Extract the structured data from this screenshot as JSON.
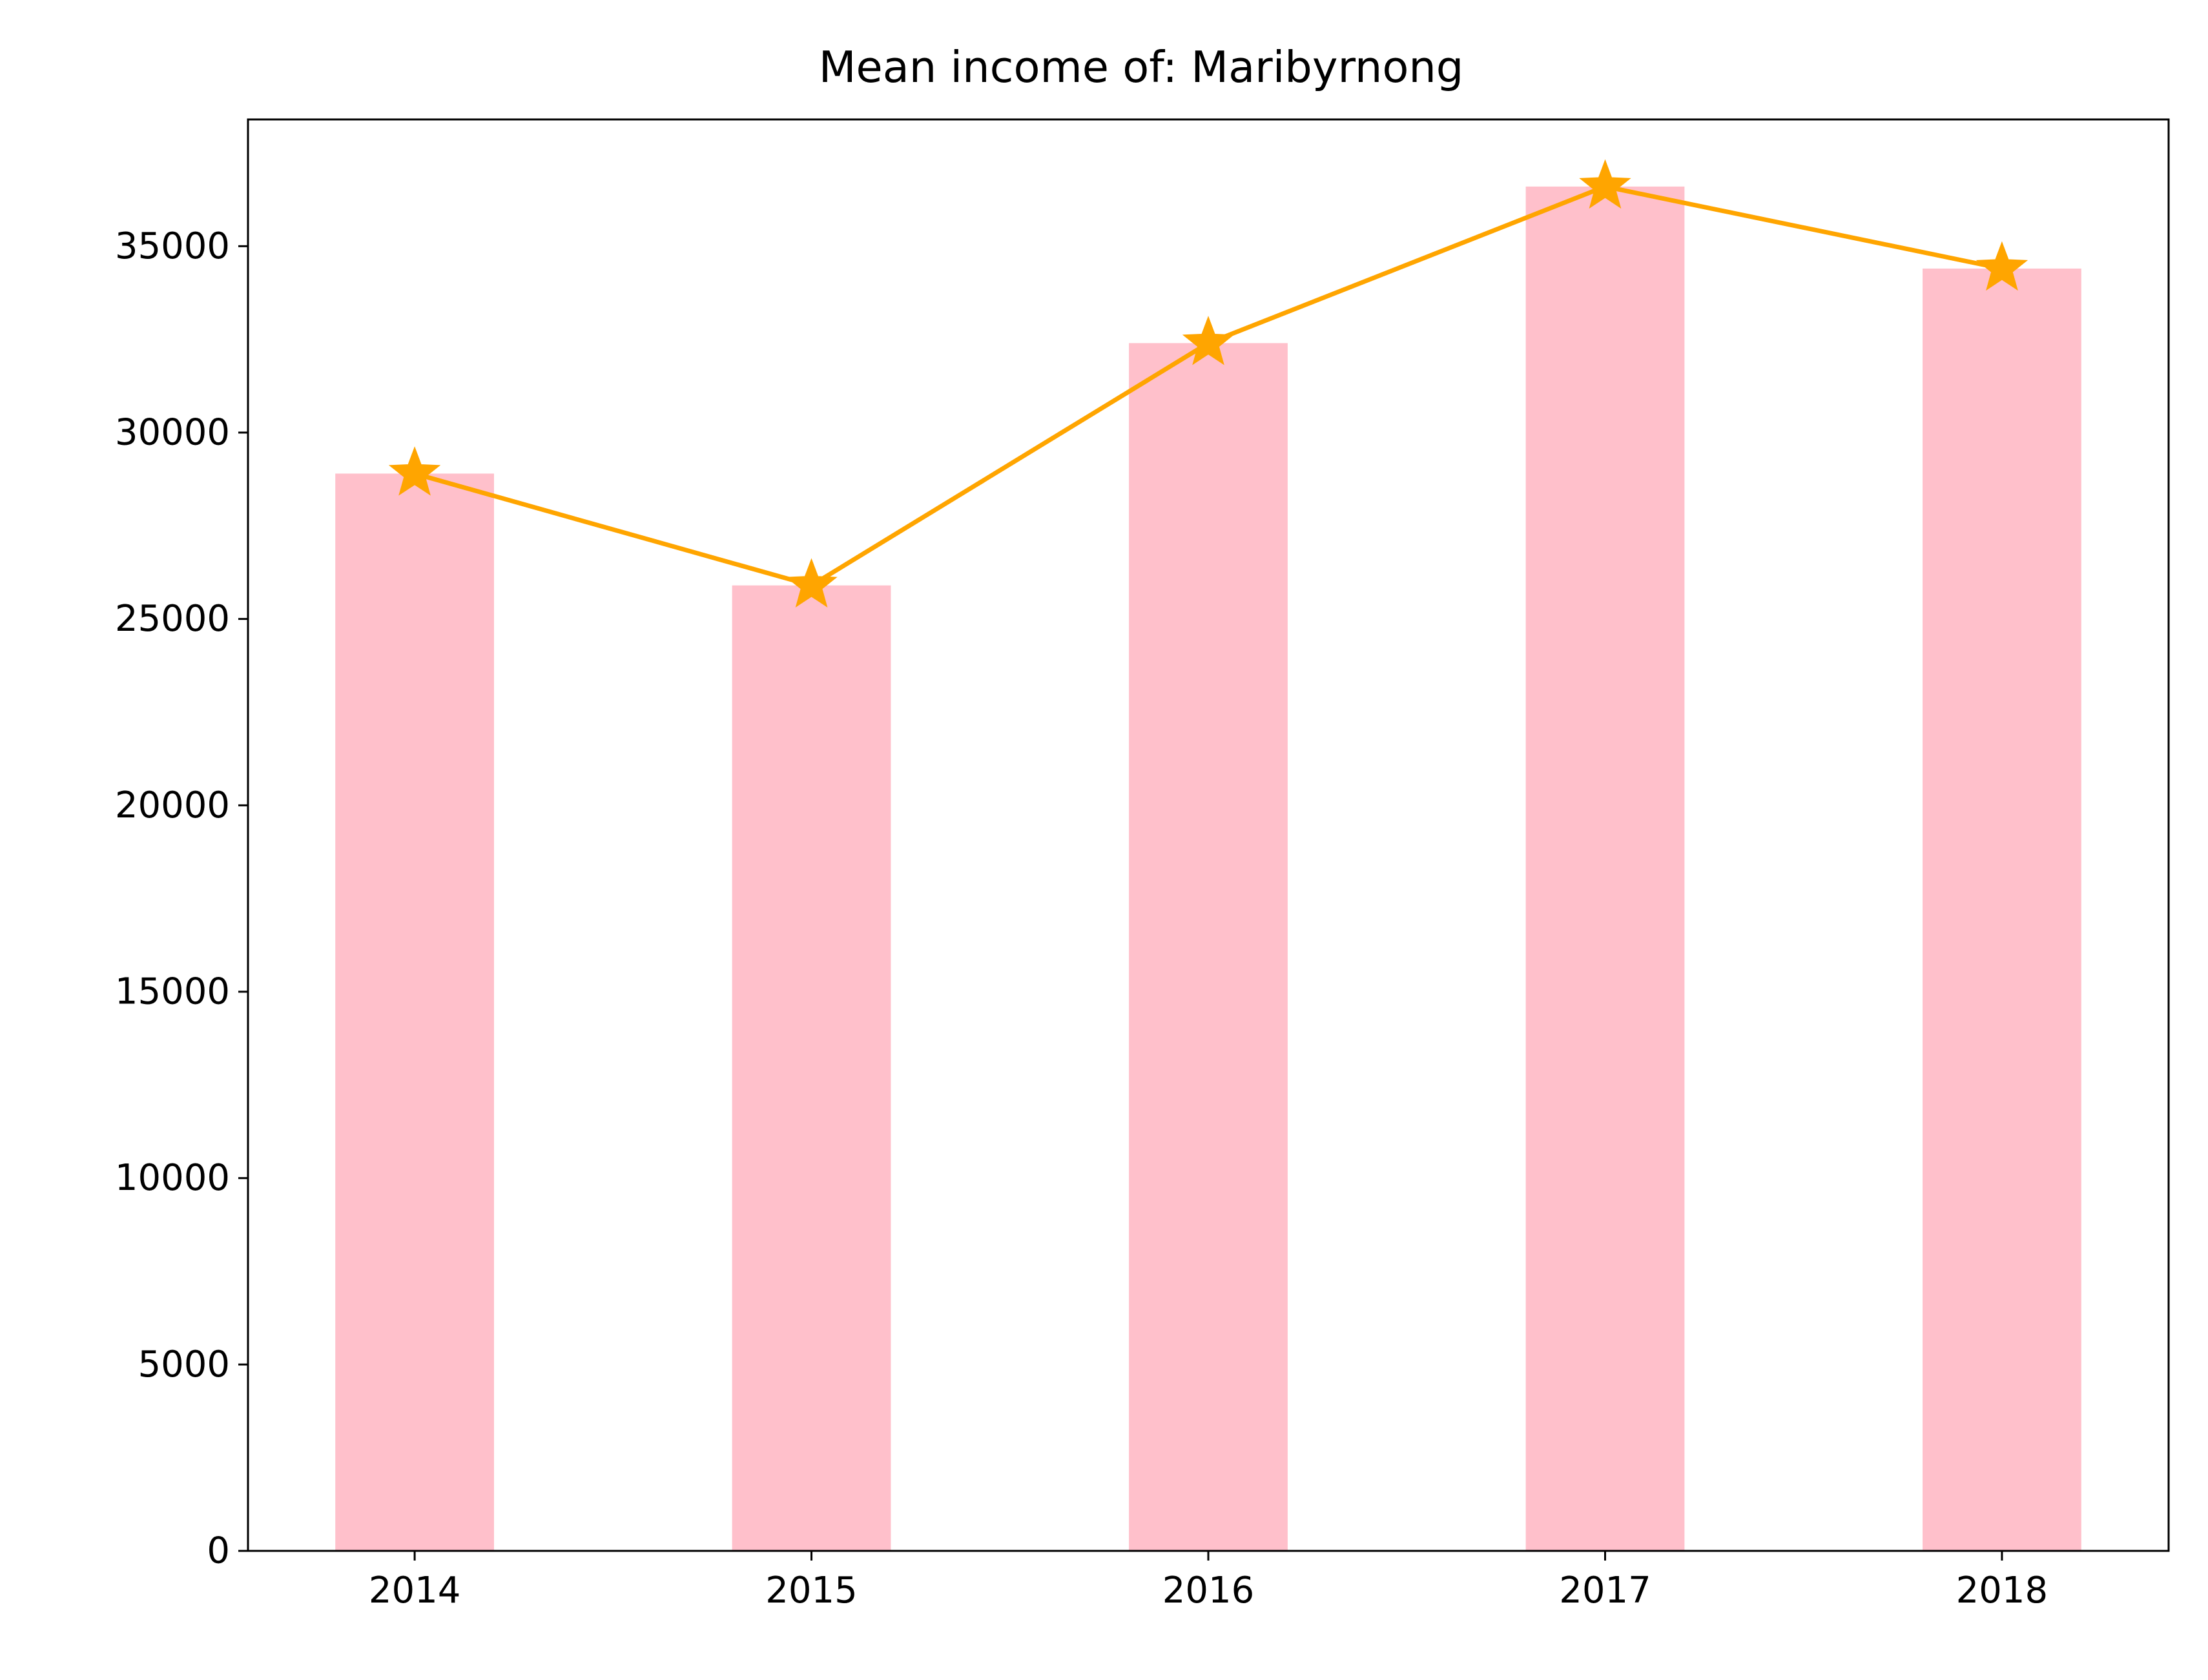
{
  "chart_data": {
    "type": "bar",
    "title": "Mean income of: Maribyrnong",
    "xlabel": "",
    "ylabel": "",
    "categories": [
      "2014",
      "2015",
      "2016",
      "2017",
      "2018"
    ],
    "series": [
      {
        "kind": "bar",
        "values": [
          28900,
          25900,
          32400,
          36600,
          34400
        ],
        "color": "#ffc0cb"
      },
      {
        "kind": "line",
        "values": [
          28900,
          25900,
          32400,
          36600,
          34400
        ],
        "color": "#ffa500",
        "marker": "star"
      }
    ],
    "ylim": [
      0,
      38400
    ],
    "yticks": [
      0,
      5000,
      10000,
      15000,
      20000,
      25000,
      30000,
      35000
    ],
    "ytick_labels": [
      "0",
      "5000",
      "10000",
      "15000",
      "20000",
      "25000",
      "30000",
      "35000"
    ],
    "grid": false,
    "legend": "none"
  }
}
